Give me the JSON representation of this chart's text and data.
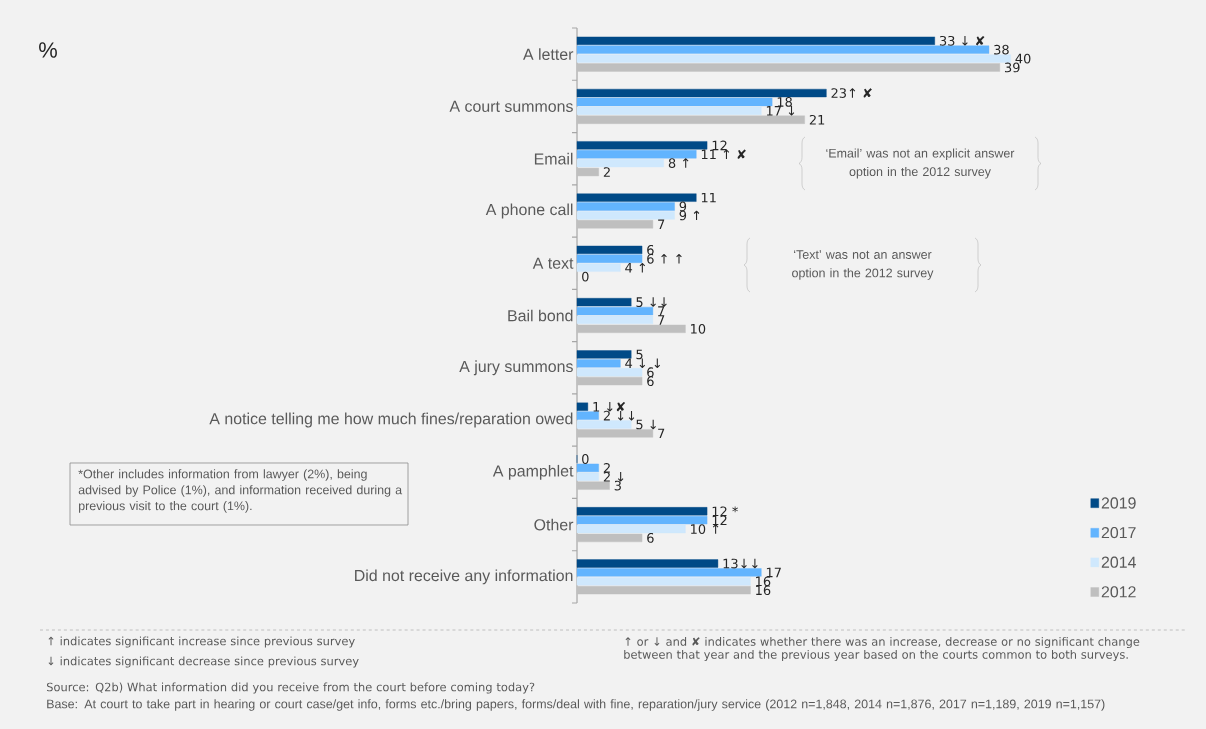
{
  "chart_data": {
    "type": "bar",
    "orientation": "horizontal",
    "title": "%",
    "categories": [
      "A letter",
      "A court summons",
      "Email",
      "A phone call",
      "A text",
      "Bail bond",
      "A jury summons",
      "A notice telling me how much fines/reparation owed",
      "A pamphlet",
      "Other",
      "Did not receive any information"
    ],
    "series": [
      {
        "name": "2019",
        "color": "#004a87",
        "values": [
          33,
          23,
          12,
          11,
          6,
          5,
          5,
          1,
          0,
          12,
          13
        ],
        "value_labels": [
          "33 ↓ ✘",
          "23↑ ✘",
          "12",
          "11",
          "6",
          "5 ↓↓",
          "5",
          "1 ↓✘",
          "0",
          "12 *",
          "13↓↓"
        ]
      },
      {
        "name": "2017",
        "color": "#62b4fe",
        "values": [
          38,
          18,
          11,
          9,
          6,
          7,
          4,
          2,
          2,
          12,
          17
        ],
        "value_labels": [
          "38",
          "18",
          "11 ↑ ✘",
          "9",
          "6 ↑ ↑",
          "7",
          "4 ↓ ↓",
          "2 ↓↓",
          "2",
          "12",
          "17"
        ]
      },
      {
        "name": "2014",
        "color": "#cfe8fd",
        "values": [
          40,
          17,
          8,
          9,
          4,
          7,
          6,
          5,
          2,
          10,
          16
        ],
        "value_labels": [
          "40",
          "17 ↓",
          "8 ↑",
          "9 ↑",
          "4 ↑",
          "7",
          "6",
          "5 ↓",
          "2 ↓",
          "10 ↑",
          "16"
        ]
      },
      {
        "name": "2012",
        "color": "#bfbfbf",
        "values": [
          39,
          21,
          2,
          7,
          0,
          10,
          6,
          7,
          3,
          6,
          16
        ],
        "value_labels": [
          "39",
          "21",
          "2",
          "7",
          "0",
          "10",
          "6",
          "7",
          "3",
          "6",
          "16"
        ]
      }
    ],
    "legend": "bottom right",
    "annotations": [
      "‘Email’ was not an explicit answer option in the 2012 survey",
      "‘Text’ was not an answer option in the 2012 survey",
      "*Other includes information from lawyer (2%), being advised by Police (1%), and information received during a previous visit to the court (1%).",
      "↑ indicates significant increase since previous survey",
      "↓ indicates significant decrease since previous survey",
      "↑ or ↓ and ✘ indicates whether there was an increase, decrease or no significant change between that year and the previous year based on the courts common to both surveys.",
      "Source: Q2b) What information did you receive from the court before coming today?",
      "Base: At court to take part in hearing or court case/get info, forms etc./bring papers, forms/deal with fine, reparation/jury service (2012 n=1,848, 2014 n=1,876, 2017 n=1,189, 2019 n=1,157)"
    ]
  }
}
